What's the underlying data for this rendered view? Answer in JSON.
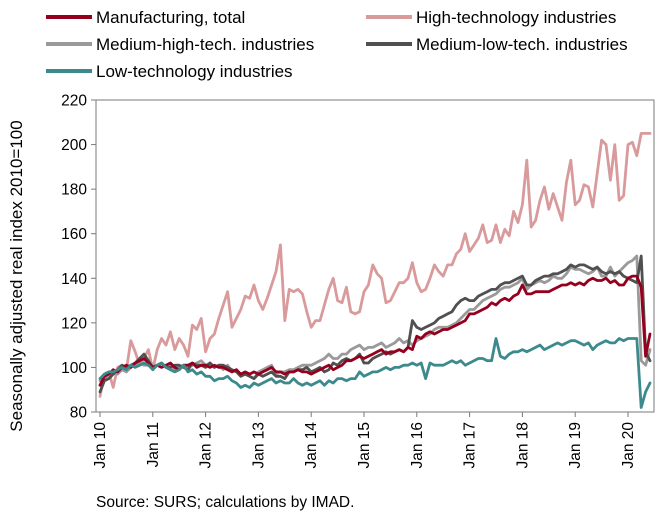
{
  "chart_data": {
    "type": "line",
    "title": "",
    "ylabel": "Seasonally adjusted real index 2010=100",
    "xlabel": "",
    "ylim": [
      80,
      220
    ],
    "y_ticks": [
      80,
      100,
      120,
      140,
      160,
      180,
      200,
      220
    ],
    "x_tick_labels": [
      "Jan 10",
      "Jan 11",
      "Jan 12",
      "Jan 13",
      "Jan 14",
      "Jan 15",
      "Jan 16",
      "Jan 17",
      "Jan 18",
      "Jan 19",
      "Jan 20"
    ],
    "x_start": "Jan 2010",
    "x_end": "Jun 2020",
    "frequency": "monthly",
    "grid": false,
    "legend_position": "top",
    "series": [
      {
        "name": "Manufacturing, total",
        "color": "#96001f",
        "values": [
          92,
          96,
          97,
          99,
          98,
          100,
          101,
          100,
          102,
          103,
          104,
          102,
          100,
          101,
          100,
          101,
          102,
          100,
          99,
          101,
          101,
          102,
          100,
          101,
          101,
          100,
          101,
          100,
          100,
          99,
          98,
          99,
          97,
          98,
          97,
          98,
          97,
          98,
          99,
          100,
          98,
          98,
          97,
          98,
          98,
          99,
          98,
          98,
          97,
          98,
          99,
          100,
          101,
          99,
          100,
          101,
          103,
          103,
          104,
          105,
          104,
          105,
          106,
          107,
          108,
          106,
          107,
          107,
          108,
          107,
          109,
          108,
          114,
          113,
          115,
          116,
          115,
          116,
          117,
          117,
          118,
          119,
          120,
          121,
          124,
          124,
          125,
          126,
          127,
          129,
          128,
          130,
          131,
          130,
          132,
          133,
          137,
          133,
          133,
          134,
          134,
          134,
          134,
          135,
          136,
          137,
          137,
          138,
          137,
          138,
          137,
          139,
          140,
          139,
          139,
          140,
          138,
          139,
          137,
          137,
          140,
          141,
          141,
          136,
          105,
          115
        ]
      },
      {
        "name": "High-technology industries",
        "color": "#d99a9c",
        "values": [
          87,
          97,
          98,
          91,
          100,
          101,
          99,
          112,
          107,
          101,
          104,
          108,
          99,
          108,
          113,
          110,
          116,
          108,
          113,
          110,
          105,
          119,
          117,
          122,
          107,
          113,
          115,
          122,
          128,
          134,
          118,
          122,
          126,
          132,
          131,
          137,
          130,
          126,
          131,
          137,
          143,
          155,
          121,
          135,
          134,
          135,
          133,
          125,
          118,
          121,
          121,
          128,
          135,
          140,
          130,
          129,
          136,
          125,
          124,
          125,
          134,
          137,
          146,
          142,
          140,
          129,
          130,
          134,
          138,
          138,
          140,
          147,
          138,
          134,
          135,
          140,
          146,
          143,
          141,
          146,
          146,
          151,
          153,
          160,
          152,
          155,
          158,
          164,
          156,
          157,
          164,
          156,
          162,
          159,
          170,
          165,
          173,
          193,
          163,
          166,
          175,
          181,
          171,
          178,
          172,
          166,
          183,
          193,
          173,
          175,
          182,
          181,
          172,
          187,
          202,
          200,
          184,
          200,
          175,
          177,
          200,
          201,
          195,
          205,
          205,
          205
        ]
      },
      {
        "name": "Medium-high-tech. industries",
        "color": "#9a9a9a",
        "values": [
          94,
          95,
          97,
          98,
          97,
          99,
          98,
          100,
          101,
          102,
          101,
          101,
          100,
          101,
          102,
          100,
          101,
          99,
          100,
          101,
          100,
          101,
          102,
          103,
          101,
          102,
          100,
          101,
          99,
          101,
          98,
          99,
          96,
          97,
          96,
          95,
          98,
          99,
          100,
          101,
          97,
          98,
          98,
          99,
          99,
          100,
          101,
          101,
          101,
          102,
          103,
          104,
          106,
          104,
          104,
          106,
          106,
          108,
          109,
          110,
          108,
          109,
          109,
          110,
          111,
          109,
          110,
          111,
          113,
          111,
          112,
          110,
          112,
          113,
          114,
          115,
          117,
          118,
          118,
          118,
          119,
          120,
          122,
          124,
          126,
          126,
          128,
          130,
          131,
          132,
          133,
          135,
          136,
          136,
          137,
          138,
          140,
          135,
          137,
          138,
          139,
          138,
          139,
          141,
          140,
          140,
          142,
          145,
          144,
          144,
          143,
          142,
          143,
          145,
          141,
          141,
          145,
          141,
          143,
          145,
          147,
          148,
          150,
          103,
          101,
          108
        ]
      },
      {
        "name": "Medium-low-tech. industries",
        "color": "#505050",
        "values": [
          89,
          94,
          95,
          97,
          99,
          101,
          100,
          101,
          102,
          104,
          106,
          103,
          100,
          101,
          102,
          100,
          100,
          101,
          101,
          100,
          99,
          102,
          101,
          101,
          100,
          102,
          100,
          101,
          101,
          100,
          99,
          98,
          96,
          97,
          96,
          95,
          97,
          96,
          97,
          98,
          96,
          96,
          95,
          98,
          98,
          99,
          99,
          100,
          98,
          99,
          100,
          98,
          99,
          102,
          101,
          103,
          104,
          103,
          104,
          106,
          102,
          102,
          104,
          105,
          106,
          107,
          106,
          107,
          108,
          107,
          109,
          121,
          118,
          117,
          118,
          119,
          120,
          122,
          123,
          124,
          125,
          128,
          130,
          131,
          130,
          130,
          132,
          133,
          134,
          135,
          135,
          137,
          138,
          138,
          139,
          140,
          141,
          137,
          137,
          139,
          140,
          141,
          141,
          142,
          142,
          143,
          144,
          146,
          145,
          146,
          146,
          145,
          144,
          145,
          143,
          142,
          143,
          142,
          143,
          141,
          140,
          139,
          138,
          150,
          107,
          103
        ]
      },
      {
        "name": "Low-technology industries",
        "color": "#3d8a8c",
        "values": [
          95,
          97,
          98,
          98,
          99,
          100,
          99,
          101,
          100,
          101,
          102,
          101,
          99,
          101,
          102,
          100,
          99,
          98,
          99,
          101,
          98,
          99,
          97,
          98,
          96,
          96,
          94,
          95,
          95,
          96,
          94,
          93,
          91,
          92,
          91,
          93,
          92,
          93,
          94,
          95,
          93,
          94,
          93,
          93,
          95,
          93,
          92,
          93,
          92,
          93,
          94,
          92,
          94,
          93,
          95,
          95,
          94,
          95,
          95,
          98,
          96,
          97,
          98,
          98,
          99,
          100,
          99,
          100,
          100,
          101,
          101,
          102,
          101,
          102,
          95,
          102,
          101,
          101,
          101,
          102,
          103,
          102,
          103,
          101,
          102,
          103,
          104,
          104,
          103,
          103,
          113,
          105,
          104,
          106,
          107,
          107,
          108,
          107,
          108,
          109,
          110,
          108,
          109,
          110,
          111,
          110,
          111,
          112,
          112,
          111,
          110,
          111,
          108,
          110,
          111,
          112,
          111,
          111,
          113,
          112,
          113,
          113,
          113,
          82,
          89,
          93
        ]
      }
    ],
    "source_note": "Source: SURS; calculations by IMAD."
  }
}
